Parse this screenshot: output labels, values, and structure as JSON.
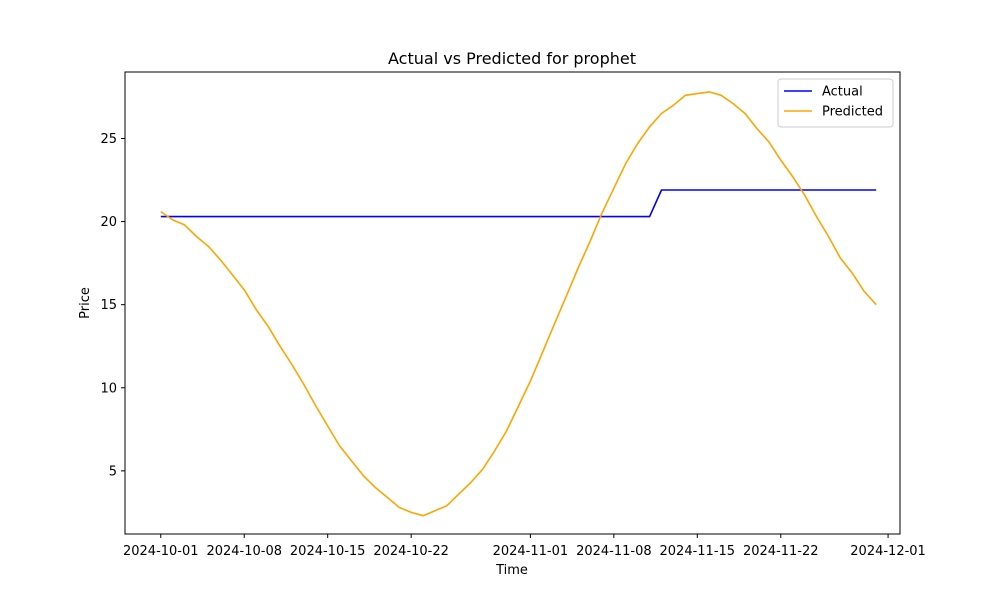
{
  "chart_data": {
    "type": "line",
    "title": "Actual vs Predicted for prophet",
    "xlabel": "Time",
    "ylabel": "Price",
    "x_axis": "date",
    "xlim": [
      "2024-09-28",
      "2024-12-02"
    ],
    "ylim": [
      1.2,
      29.0
    ],
    "x_ticks": [
      "2024-10-01",
      "2024-10-08",
      "2024-10-15",
      "2024-10-22",
      "2024-11-01",
      "2024-11-08",
      "2024-11-15",
      "2024-11-22",
      "2024-12-01"
    ],
    "y_ticks": [
      5,
      10,
      15,
      20,
      25
    ],
    "grid": false,
    "legend": {
      "position": "top-right"
    },
    "series": [
      {
        "name": "Actual",
        "color": "#0000ff",
        "points": [
          [
            "2024-10-01",
            20.3
          ],
          [
            "2024-11-11",
            20.3
          ],
          [
            "2024-11-12",
            21.9
          ],
          [
            "2024-11-30",
            21.9
          ]
        ]
      },
      {
        "name": "Predicted",
        "color": "#ffa500",
        "points": [
          [
            "2024-10-01",
            20.6
          ],
          [
            "2024-10-02",
            20.1
          ],
          [
            "2024-10-03",
            19.8
          ],
          [
            "2024-10-04",
            19.1
          ],
          [
            "2024-10-05",
            18.5
          ],
          [
            "2024-10-06",
            17.7
          ],
          [
            "2024-10-07",
            16.8
          ],
          [
            "2024-10-08",
            15.9
          ],
          [
            "2024-10-09",
            14.7
          ],
          [
            "2024-10-10",
            13.7
          ],
          [
            "2024-10-11",
            12.5
          ],
          [
            "2024-10-12",
            11.4
          ],
          [
            "2024-10-13",
            10.2
          ],
          [
            "2024-10-14",
            8.9
          ],
          [
            "2024-10-15",
            7.7
          ],
          [
            "2024-10-16",
            6.5
          ],
          [
            "2024-10-17",
            5.6
          ],
          [
            "2024-10-18",
            4.7
          ],
          [
            "2024-10-19",
            4.0
          ],
          [
            "2024-10-20",
            3.4
          ],
          [
            "2024-10-21",
            2.8
          ],
          [
            "2024-10-22",
            2.5
          ],
          [
            "2024-10-23",
            2.3
          ],
          [
            "2024-10-24",
            2.6
          ],
          [
            "2024-10-25",
            2.9
          ],
          [
            "2024-10-26",
            3.6
          ],
          [
            "2024-10-27",
            4.3
          ],
          [
            "2024-10-28",
            5.1
          ],
          [
            "2024-10-29",
            6.2
          ],
          [
            "2024-10-30",
            7.4
          ],
          [
            "2024-10-31",
            8.9
          ],
          [
            "2024-11-01",
            10.4
          ],
          [
            "2024-11-02",
            12.1
          ],
          [
            "2024-11-03",
            13.8
          ],
          [
            "2024-11-04",
            15.5
          ],
          [
            "2024-11-05",
            17.2
          ],
          [
            "2024-11-06",
            18.8
          ],
          [
            "2024-11-07",
            20.5
          ],
          [
            "2024-11-08",
            22.0
          ],
          [
            "2024-11-09",
            23.5
          ],
          [
            "2024-11-10",
            24.7
          ],
          [
            "2024-11-11",
            25.7
          ],
          [
            "2024-11-12",
            26.5
          ],
          [
            "2024-11-13",
            27.0
          ],
          [
            "2024-11-14",
            27.6
          ],
          [
            "2024-11-15",
            27.7
          ],
          [
            "2024-11-16",
            27.8
          ],
          [
            "2024-11-17",
            27.6
          ],
          [
            "2024-11-18",
            27.1
          ],
          [
            "2024-11-19",
            26.5
          ],
          [
            "2024-11-20",
            25.6
          ],
          [
            "2024-11-21",
            24.8
          ],
          [
            "2024-11-22",
            23.7
          ],
          [
            "2024-11-23",
            22.7
          ],
          [
            "2024-11-24",
            21.6
          ],
          [
            "2024-11-25",
            20.3
          ],
          [
            "2024-11-26",
            19.1
          ],
          [
            "2024-11-27",
            17.8
          ],
          [
            "2024-11-28",
            16.9
          ],
          [
            "2024-11-29",
            15.8
          ],
          [
            "2024-11-30",
            15.0
          ]
        ]
      }
    ]
  }
}
